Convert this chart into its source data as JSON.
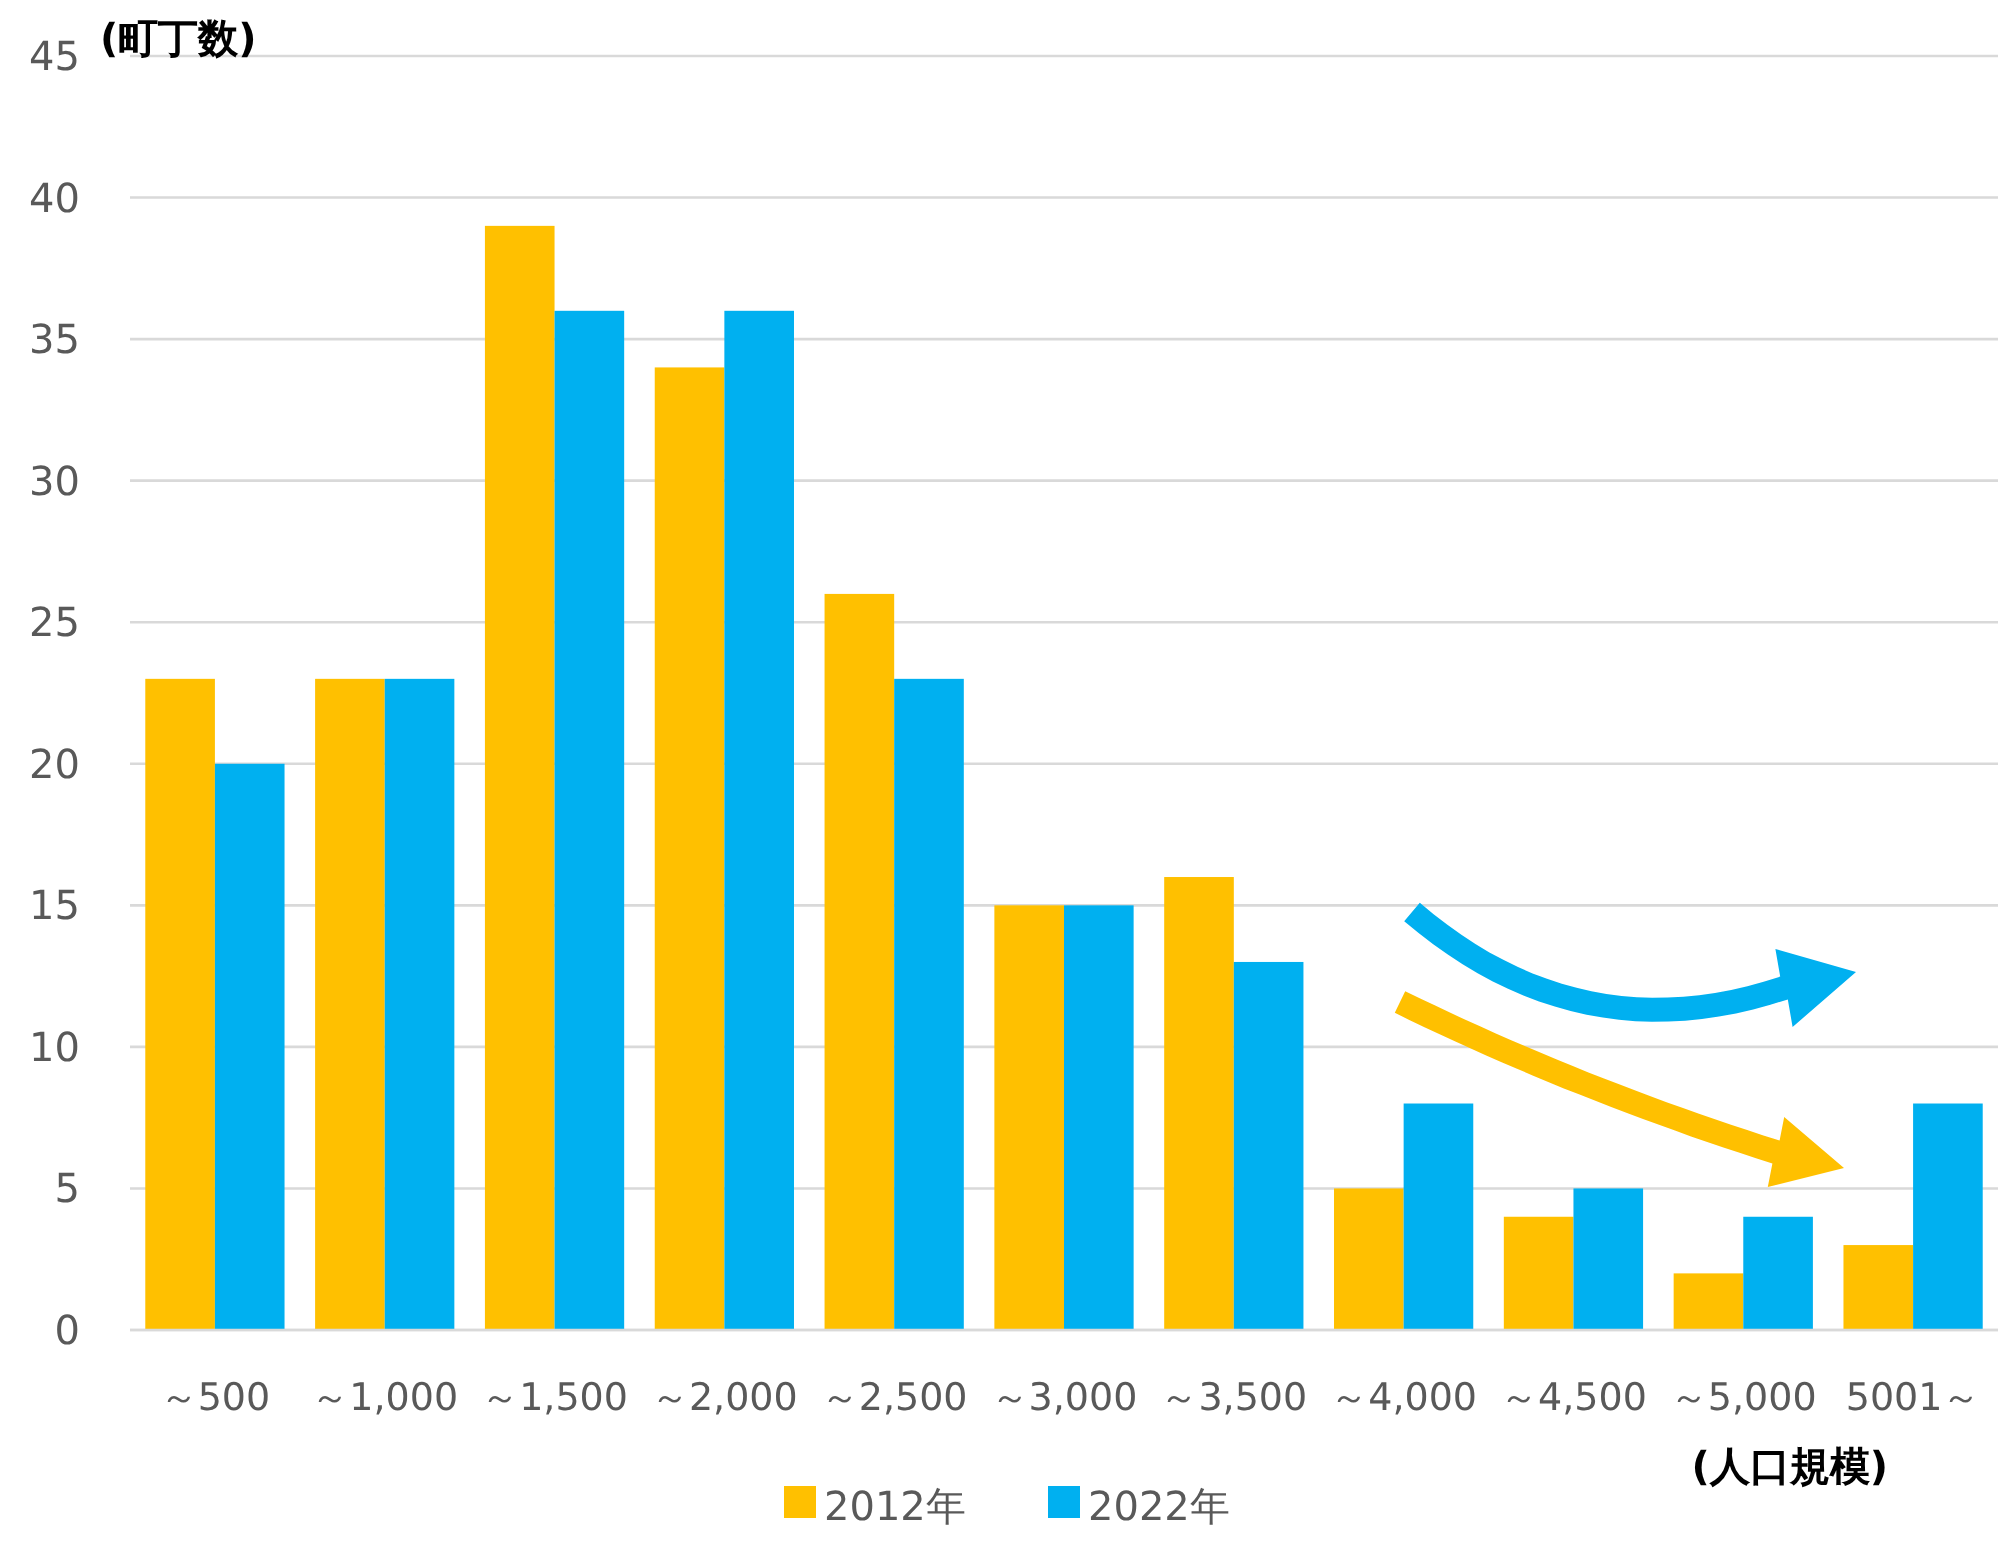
{
  "chart_data": {
    "type": "bar",
    "ylabel": "(町丁数)",
    "xlabel": "(人口規模)",
    "categories": [
      "～500",
      "～1,000",
      "～1,500",
      "～2,000",
      "～2,500",
      "～3,000",
      "～3,500",
      "～4,000",
      "～4,500",
      "～5,000",
      "5001～"
    ],
    "series": [
      {
        "name": "2012年",
        "color": "#ffc000",
        "values": [
          23,
          23,
          39,
          34,
          26,
          15,
          16,
          5,
          4,
          2,
          3
        ]
      },
      {
        "name": "2022年",
        "color": "#00b0f0",
        "values": [
          20,
          23,
          36,
          36,
          23,
          15,
          13,
          8,
          5,
          4,
          8
        ]
      }
    ],
    "ylim": [
      0,
      45
    ],
    "yticks": [
      0,
      5,
      10,
      15,
      20,
      25,
      30,
      35,
      40,
      45
    ],
    "grid": "y",
    "legend": "bottom"
  }
}
